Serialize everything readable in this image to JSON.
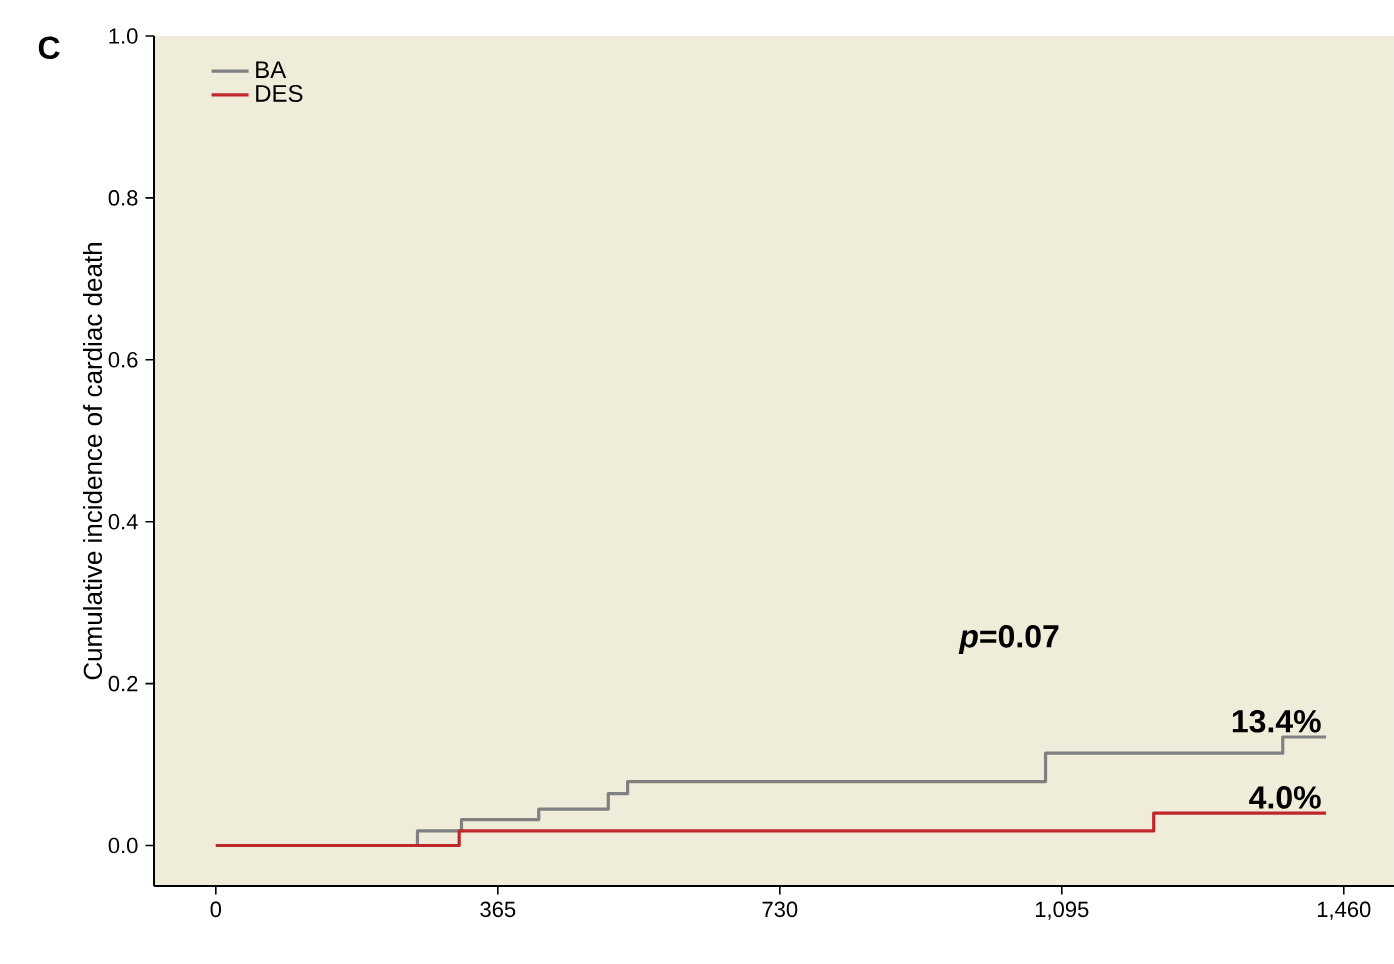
{
  "chart_data": {
    "type": "step",
    "ylabel": "Cumulative incidence of cardiac death",
    "xlim": [
      -80,
      1525
    ],
    "ylim": [
      -0.05,
      1.0
    ],
    "xticks": [
      {
        "value": 0,
        "label": "0"
      },
      {
        "value": 365,
        "label": "365"
      },
      {
        "value": 730,
        "label": "730"
      },
      {
        "value": 1095,
        "label": "1,095"
      },
      {
        "value": 1460,
        "label": "1,460"
      }
    ],
    "yticks": [
      {
        "value": 0,
        "label": "0.0"
      },
      {
        "value": 0.2,
        "label": "0.2"
      },
      {
        "value": 0.4,
        "label": "0.4"
      },
      {
        "value": 0.6,
        "label": "0.6"
      },
      {
        "value": 0.8,
        "label": "0.8"
      },
      {
        "value": 1.0,
        "label": "1.0"
      }
    ],
    "grid": false,
    "legend": "top left",
    "marker": "none",
    "line_style": "solid",
    "series": [
      {
        "name": "BA",
        "color": "#808080",
        "x": [
          0,
          261,
          318,
          418,
          508,
          533,
          1074,
          1381,
          1437
        ],
        "values": [
          0.0,
          0.018,
          0.032,
          0.045,
          0.064,
          0.079,
          0.114,
          0.134,
          0.134
        ]
      },
      {
        "name": "DES",
        "color": "#c0272d",
        "x": [
          0,
          315,
          1214,
          1437
        ],
        "values": [
          0.0,
          0.018,
          0.04,
          0.04
        ]
      }
    ],
    "annotations": [
      "C",
      "*p*=0.07",
      {
        "text": "13.4%",
        "x": 1437,
        "y": 0.134
      },
      {
        "text": "4.0%",
        "x": 1437,
        "y": 0.04
      }
    ]
  }
}
